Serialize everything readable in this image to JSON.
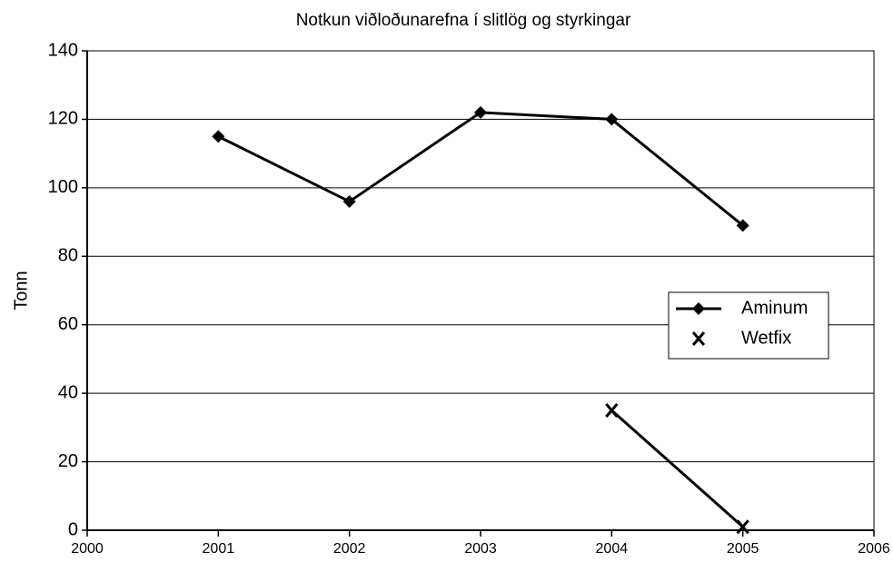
{
  "chart_data": {
    "type": "line",
    "title": "Notkun viðloðunarefna í slitlög og styrkingar",
    "y_label": "Tonn",
    "x": [
      2001,
      2002,
      2003,
      2004,
      2005
    ],
    "xlim": [
      2000,
      2006
    ],
    "xticks": [
      2000,
      2001,
      2002,
      2003,
      2004,
      2005,
      2006
    ],
    "ylim": [
      0,
      140
    ],
    "yticks": [
      0,
      20,
      40,
      60,
      80,
      100,
      120,
      140
    ],
    "grid": true,
    "legend": "right",
    "series": [
      {
        "name": "Aminum",
        "color": "#000000",
        "marker": "diamond",
        "values": [
          115,
          96,
          122,
          120,
          89
        ]
      },
      {
        "name": "Wetfix",
        "color": "#000000",
        "marker": "x",
        "values": [
          null,
          null,
          null,
          35,
          1
        ]
      }
    ]
  }
}
